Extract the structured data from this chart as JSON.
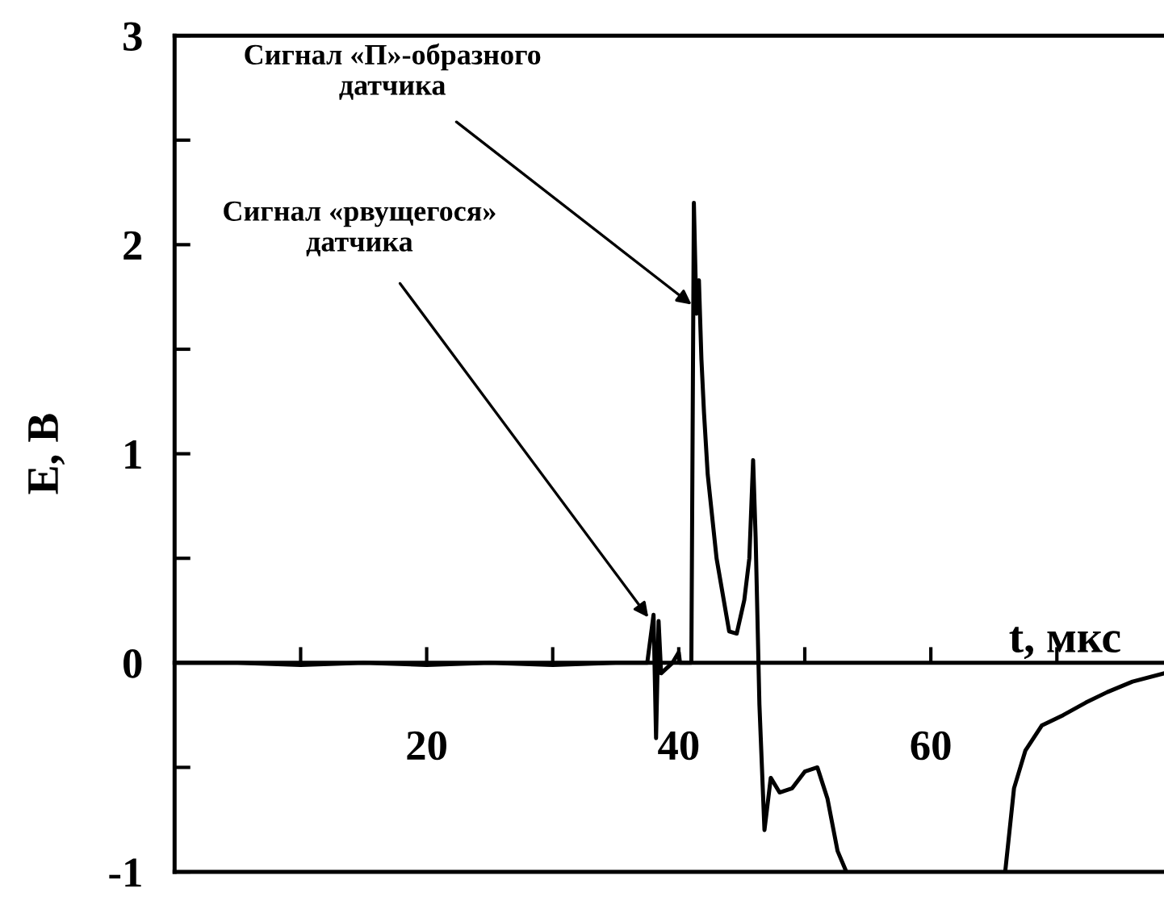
{
  "chart_data": {
    "type": "line",
    "xlabel": "t, мкс",
    "ylabel": "E, В",
    "x": [
      0,
      5,
      10,
      15,
      20,
      25,
      30,
      35,
      37.5,
      38.0,
      38.2,
      38.4,
      38.6,
      39.5,
      40.0,
      40.1,
      40.3,
      41.0,
      41.2,
      41.4,
      41.6,
      41.8,
      42.0,
      42.3,
      43.0,
      44.0,
      44.6,
      45.2,
      45.6,
      45.9,
      46.1,
      46.4,
      46.8,
      47.3,
      48.0,
      49.0,
      50.0,
      51.0,
      51.8,
      52.6,
      53.3,
      53.4,
      65.8,
      65.9,
      66.6,
      67.5,
      68.8,
      70.5,
      72.3,
      74.0,
      76.0,
      78.5
    ],
    "series": [
      {
        "color": "#000000",
        "values": [
          0,
          0,
          -0.01,
          0,
          -0.01,
          0,
          -0.01,
          0,
          0,
          0.23,
          -0.36,
          0.2,
          -0.05,
          0,
          0.05,
          0,
          0,
          0,
          2.2,
          1.67,
          1.83,
          1.45,
          1.2,
          0.9,
          0.5,
          0.15,
          0.14,
          0.3,
          0.5,
          0.97,
          0.6,
          -0.2,
          -0.8,
          -0.55,
          -0.62,
          -0.6,
          -0.52,
          -0.5,
          -0.65,
          -0.9,
          -1,
          null,
          null,
          -1,
          -0.6,
          -0.42,
          -0.3,
          -0.25,
          -0.19,
          -0.14,
          -0.09,
          -0.05
        ]
      }
    ],
    "xlim": [
      0,
      78.5
    ],
    "ylim": [
      -1,
      3
    ],
    "xticks": [
      {
        "value": 10,
        "label": null
      },
      20,
      {
        "value": 30,
        "label": null
      },
      40,
      {
        "value": 50,
        "label": null
      },
      60,
      {
        "value": 70,
        "label": null
      }
    ],
    "yticks": [
      -1,
      {
        "value": -0.5,
        "label": null
      },
      0,
      {
        "value": 0.5,
        "label": null
      },
      1,
      {
        "value": 1.5,
        "label": null
      },
      2,
      {
        "value": 2.5,
        "label": null
      },
      3
    ],
    "annotations": [
      {
        "text": "Сигнал «П»-образного\nдатчика",
        "x": 41.3,
        "y": 1.7
      },
      {
        "text": "Сигнал «рвущегося»\nдатчика",
        "x": 37.8,
        "y": 0.2
      }
    ],
    "grid": false,
    "legend": false,
    "marker": "none",
    "line_style": "solid"
  }
}
